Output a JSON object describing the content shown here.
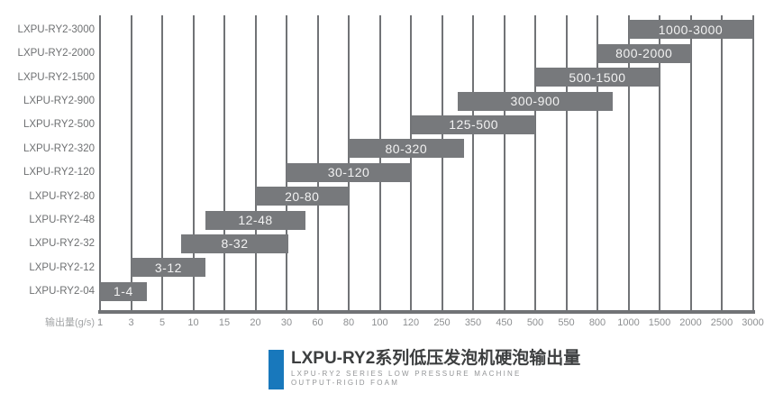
{
  "chart_data": {
    "type": "bar",
    "variant": "horizontal-range",
    "title": "LXPU-RY2系列低压发泡机硬泡输出量",
    "xlabel": "输出量(g/s)",
    "x_ticks": [
      1,
      3,
      5,
      10,
      15,
      20,
      30,
      60,
      80,
      100,
      120,
      250,
      350,
      450,
      500,
      550,
      800,
      1000,
      1500,
      2000,
      2500,
      3000
    ],
    "grid": true,
    "legend": false,
    "bar_color": "#77797c",
    "grid_color": "#717376",
    "rows": [
      {
        "label": "LXPU-RY2-3000",
        "start": 1000,
        "end": 3000,
        "range_label": "1000-3000"
      },
      {
        "label": "LXPU-RY2-2000",
        "start": 800,
        "end": 2000,
        "range_label": "800-2000"
      },
      {
        "label": "LXPU-RY2-1500",
        "start": 500,
        "end": 1500,
        "range_label": "500-1500"
      },
      {
        "label": "LXPU-RY2-900",
        "start": 300,
        "end": 900,
        "range_label": "300-900"
      },
      {
        "label": "LXPU-RY2-500",
        "start": 125,
        "end": 500,
        "range_label": "125-500"
      },
      {
        "label": "LXPU-RY2-320",
        "start": 80,
        "end": 320,
        "range_label": "80-320"
      },
      {
        "label": "LXPU-RY2-120",
        "start": 30,
        "end": 120,
        "range_label": "30-120"
      },
      {
        "label": "LXPU-RY2-80",
        "start": 20,
        "end": 80,
        "range_label": "20-80"
      },
      {
        "label": "LXPU-RY2-48",
        "start": 12,
        "end": 48,
        "range_label": "12-48"
      },
      {
        "label": "LXPU-RY2-32",
        "start": 8,
        "end": 32,
        "range_label": "8-32"
      },
      {
        "label": "LXPU-RY2-12",
        "start": 3,
        "end": 12,
        "range_label": "3-12"
      },
      {
        "label": "LXPU-RY2-04",
        "start": 1,
        "end": 4,
        "range_label": "1-4"
      }
    ]
  },
  "title_block": {
    "title": "LXPU-RY2系列低压发泡机硬泡输出量",
    "subtitle_line1": "LXPU-RY2 SERIES LOW PRESSURE MACHINE",
    "subtitle_line2": "OUTPUT-RIGID FOAM",
    "accent_color": "#1878bc"
  }
}
